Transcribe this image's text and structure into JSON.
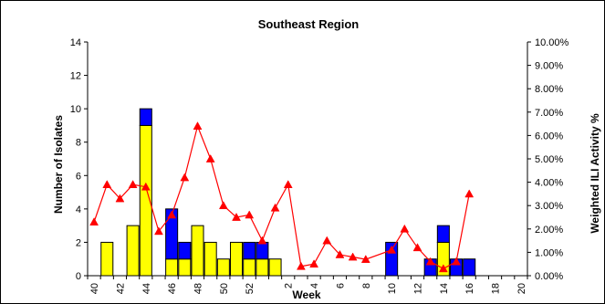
{
  "chart_data": {
    "type": "bar",
    "title": "Southeast Region",
    "xlabel": "Week",
    "ylabel": "Number of Isolates",
    "y2label": "Weighted ILI Activity %",
    "ylim": [
      0,
      14
    ],
    "y_ticks": [
      "0",
      "2",
      "4",
      "6",
      "8",
      "10",
      "12",
      "14"
    ],
    "y2lim": [
      0,
      10
    ],
    "y2_ticks": [
      "0.00%",
      "1.00%",
      "2.00%",
      "3.00%",
      "4.00%",
      "5.00%",
      "6.00%",
      "7.00%",
      "8.00%",
      "9.00%",
      "10.00%"
    ],
    "categories": [
      "40",
      "41",
      "42",
      "43",
      "44",
      "45",
      "46",
      "47",
      "48",
      "49",
      "50",
      "51",
      "52",
      "53",
      "1",
      "2",
      "3",
      "4",
      "5",
      "6",
      "7",
      "8",
      "9",
      "10",
      "11",
      "12",
      "13",
      "14",
      "15",
      "16",
      "17",
      "18",
      "19",
      "20"
    ],
    "x_tick_labels": [
      "40",
      "",
      "42",
      "",
      "44",
      "",
      "46",
      "",
      "48",
      "",
      "50",
      "",
      "52",
      "",
      "",
      "2",
      "",
      "4",
      "",
      "6",
      "",
      "8",
      "",
      "10",
      "",
      "12",
      "",
      "14",
      "",
      "16",
      "",
      "18",
      "",
      "20"
    ],
    "stacked": true,
    "series": [
      {
        "kind": "bar",
        "color": "#FFFF00",
        "values": [
          0,
          2,
          0,
          3,
          9,
          0,
          1,
          1,
          3,
          2,
          1,
          2,
          1,
          1,
          1,
          0,
          0,
          0,
          0,
          0,
          0,
          0,
          0,
          0,
          0,
          0,
          0,
          2,
          0,
          0,
          0,
          0,
          0,
          0
        ]
      },
      {
        "kind": "bar",
        "color": "#0000FF",
        "values": [
          0,
          0,
          0,
          0,
          1,
          0,
          3,
          1,
          0,
          0,
          0,
          0,
          1,
          1,
          0,
          0,
          0,
          0,
          0,
          0,
          0,
          0,
          0,
          2,
          0,
          0,
          1,
          1,
          1,
          1,
          0,
          0,
          0,
          0
        ]
      },
      {
        "kind": "line",
        "axis": "right",
        "color": "#FF0000",
        "marker": "triangle",
        "values": [
          2.3,
          3.9,
          3.3,
          3.9,
          3.8,
          1.9,
          2.6,
          4.2,
          6.4,
          5.0,
          3.0,
          2.5,
          2.6,
          1.5,
          2.9,
          3.9,
          0.4,
          0.5,
          1.5,
          0.9,
          0.8,
          0.7,
          null,
          1.1,
          2.0,
          1.2,
          0.6,
          0.3,
          0.6,
          3.5,
          null,
          null,
          null,
          null
        ]
      }
    ],
    "grid": false,
    "legend": "none"
  }
}
